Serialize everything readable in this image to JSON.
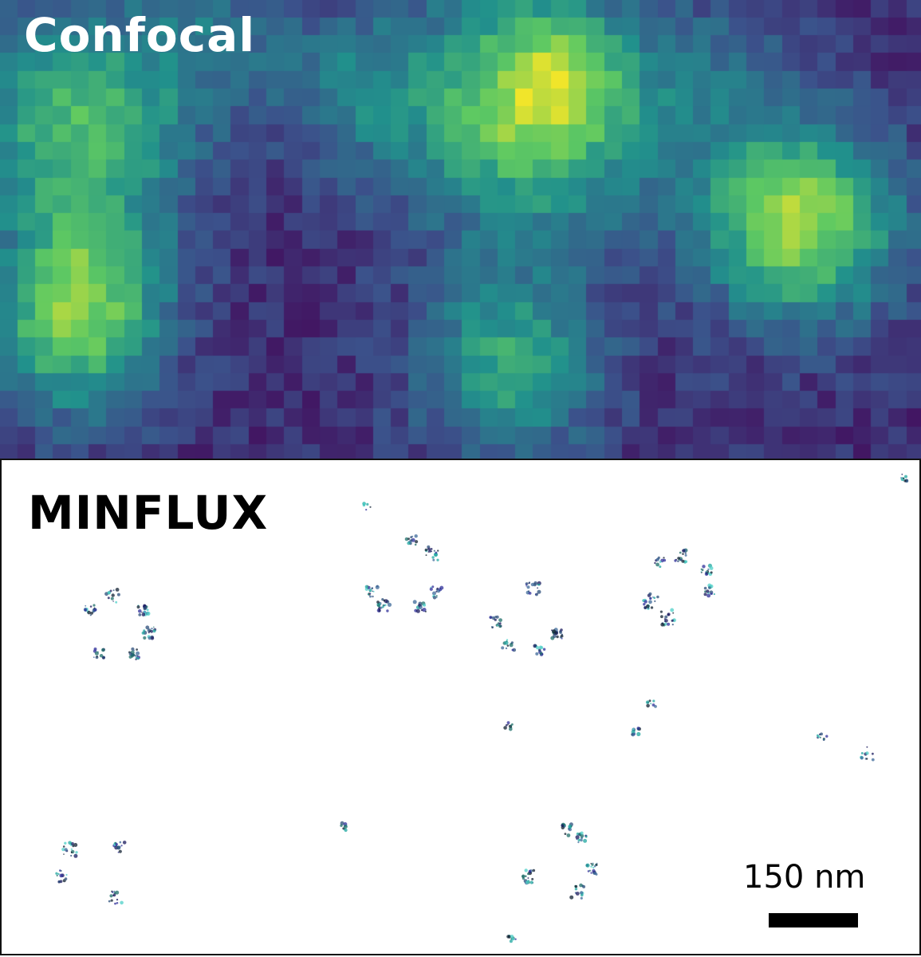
{
  "panels": {
    "confocal": {
      "label": "Confocal",
      "colormap": [
        "#440154",
        "#3b528b",
        "#21918c",
        "#5ec962",
        "#fde725"
      ]
    },
    "minflux": {
      "label": "MINFLUX",
      "scale_bar": {
        "label": "150 nm",
        "color": "#000000"
      },
      "point_colors": [
        "#1a1a5e",
        "#2f2f9a",
        "#3d6a9a",
        "#1f6f6a",
        "#20a7a0",
        "#4fd0c8",
        "#112233",
        "#2b4d7a"
      ]
    }
  }
}
